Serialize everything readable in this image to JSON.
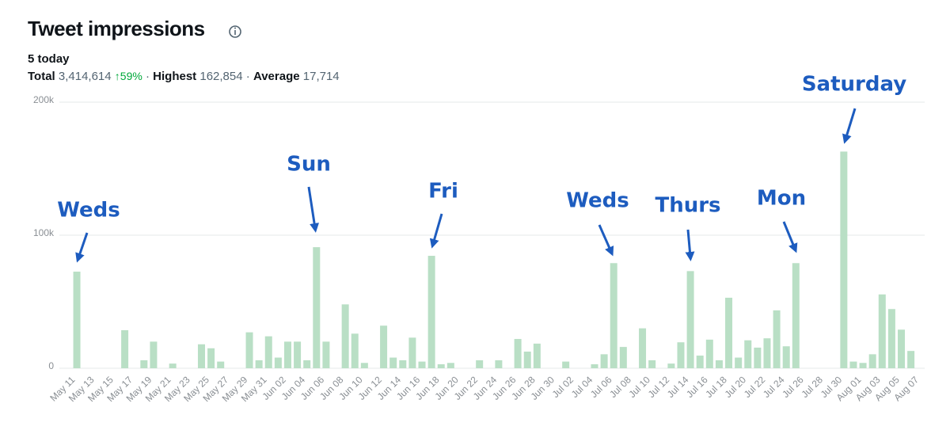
{
  "chart_data": {
    "type": "bar",
    "title": "Tweet impressions",
    "today": "5 today",
    "stats": {
      "total_label": "Total",
      "total": "3,414,614",
      "change": "↑59%",
      "highest_label": "Highest",
      "highest": "162,854",
      "average_label": "Average",
      "average": "17,714",
      "separator": "·"
    },
    "categories": [
      "May 11",
      null,
      "May 13",
      null,
      "May 15",
      null,
      "May 17",
      null,
      "May 19",
      null,
      "May 21",
      null,
      "May 23",
      null,
      "May 25",
      null,
      "May 27",
      null,
      "May 29",
      null,
      "May 31",
      null,
      "Jun 02",
      null,
      "Jun 04",
      null,
      "Jun 06",
      null,
      "Jun 08",
      null,
      "Jun 10",
      null,
      "Jun 12",
      null,
      "Jun 14",
      null,
      "Jun 16",
      null,
      "Jun 18",
      null,
      "Jun 20",
      null,
      "Jun 22",
      null,
      "Jun 24",
      null,
      "Jun 26",
      null,
      "Jun 28",
      null,
      "Jun 30",
      null,
      "Jul 02",
      null,
      "Jul 04",
      null,
      "Jul 06",
      null,
      "Jul 08",
      null,
      "Jul 10",
      null,
      "Jul 12",
      null,
      "Jul 14",
      null,
      "Jul 16",
      null,
      "Jul 18",
      null,
      "Jul 20",
      null,
      "Jul 22",
      null,
      "Jul 24",
      null,
      "Jul 26",
      null,
      "Jul 28",
      null,
      "Jul 30",
      null,
      "Aug 01",
      null,
      "Aug 03",
      null,
      "Aug 05",
      null,
      "Aug 07"
    ],
    "values": [
      72600,
      0,
      0,
      0,
      0,
      28600,
      0,
      6000,
      20000,
      0,
      3500,
      0,
      0,
      18000,
      15000,
      5000,
      0,
      0,
      27000,
      6000,
      24000,
      8000,
      20000,
      20000,
      6000,
      91000,
      20000,
      0,
      48000,
      26000,
      4000,
      0,
      32000,
      8000,
      6000,
      23000,
      5000,
      84500,
      3000,
      4000,
      0,
      0,
      6000,
      0,
      6000,
      0,
      22000,
      12500,
      18500,
      0,
      0,
      5000,
      0,
      0,
      3000,
      10500,
      79000,
      16000,
      0,
      30000,
      6000,
      0,
      3500,
      19500,
      73000,
      9500,
      21500,
      6000,
      53000,
      8000,
      21000,
      15500,
      22500,
      43500,
      16500,
      79000,
      0,
      0,
      0,
      0,
      162854,
      5000,
      4000,
      10500,
      55500,
      44500,
      29000,
      13000,
      0
    ],
    "color": "#b9dfc5",
    "ylim": [
      0,
      200000
    ],
    "yticks": [
      0,
      {
        "value": 100000,
        "label": "100k"
      },
      {
        "value": 200000,
        "label": "200k"
      }
    ],
    "grid": true,
    "annotations": [
      "Weds",
      "Sun",
      "Fri",
      "Weds",
      "Thurs",
      "Mon",
      "Saturday"
    ]
  }
}
